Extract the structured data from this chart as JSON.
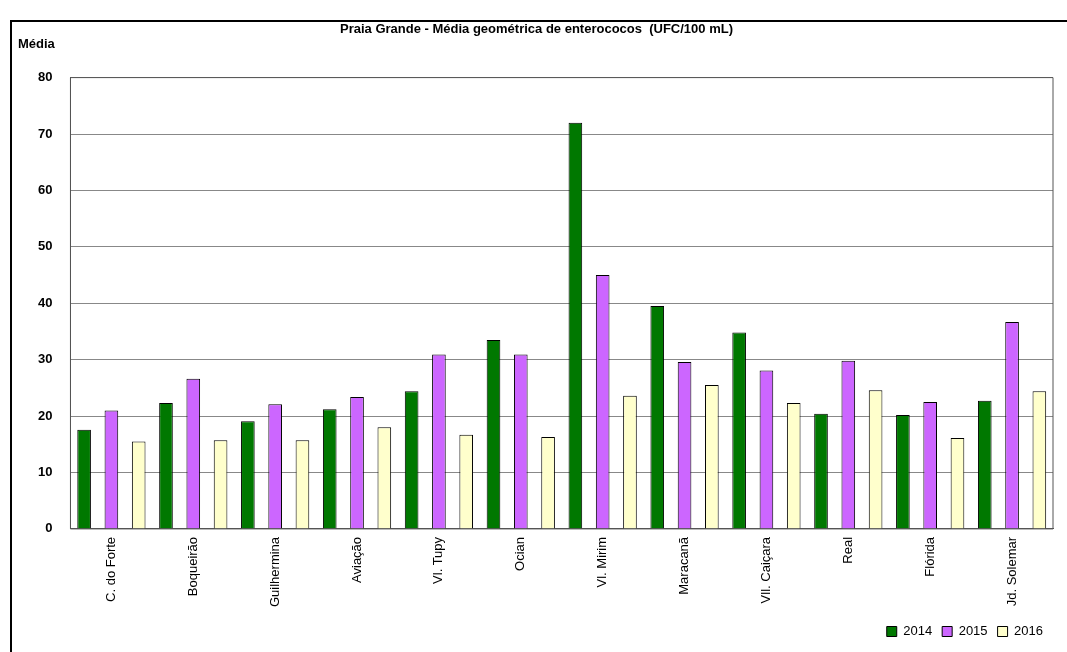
{
  "chart_data": {
    "type": "bar",
    "title": "Praia Grande - Média geométrica de enterococos  (UFC/100 mL)",
    "ylabel": "Média",
    "categories": [
      "C. do Forte",
      "Boqueirão",
      "Guilhermina",
      "Aviação",
      "Vl. Tupy",
      "Ocian",
      "Vl. Mirim",
      "Maracanã",
      "Vll. Caiçara",
      "Real",
      "Flórida",
      "Jd. Solemar"
    ],
    "series": [
      {
        "name": "2014",
        "color": "#007800",
        "values": [
          17.6,
          22.3,
          19.1,
          21.2,
          24.4,
          33.5,
          72,
          39.5,
          34.8,
          20.4,
          20.2,
          22.7
        ]
      },
      {
        "name": "2015",
        "color": "#cc66ff",
        "values": [
          21,
          26.6,
          22.1,
          23.4,
          30.9,
          30.9,
          45,
          29.6,
          28.1,
          29.8,
          22.5,
          36.7
        ]
      },
      {
        "name": "2016",
        "color": "#ffffcc",
        "values": [
          15.5,
          15.7,
          15.7,
          18,
          16.7,
          16.3,
          23.6,
          25.5,
          22.3,
          24.6,
          16.1,
          24.4
        ]
      }
    ],
    "ylim": [
      0,
      80
    ],
    "yticks": [
      0,
      10,
      20,
      30,
      40,
      50,
      60,
      70,
      80
    ],
    "grid": "y",
    "legend": "bottom right"
  }
}
